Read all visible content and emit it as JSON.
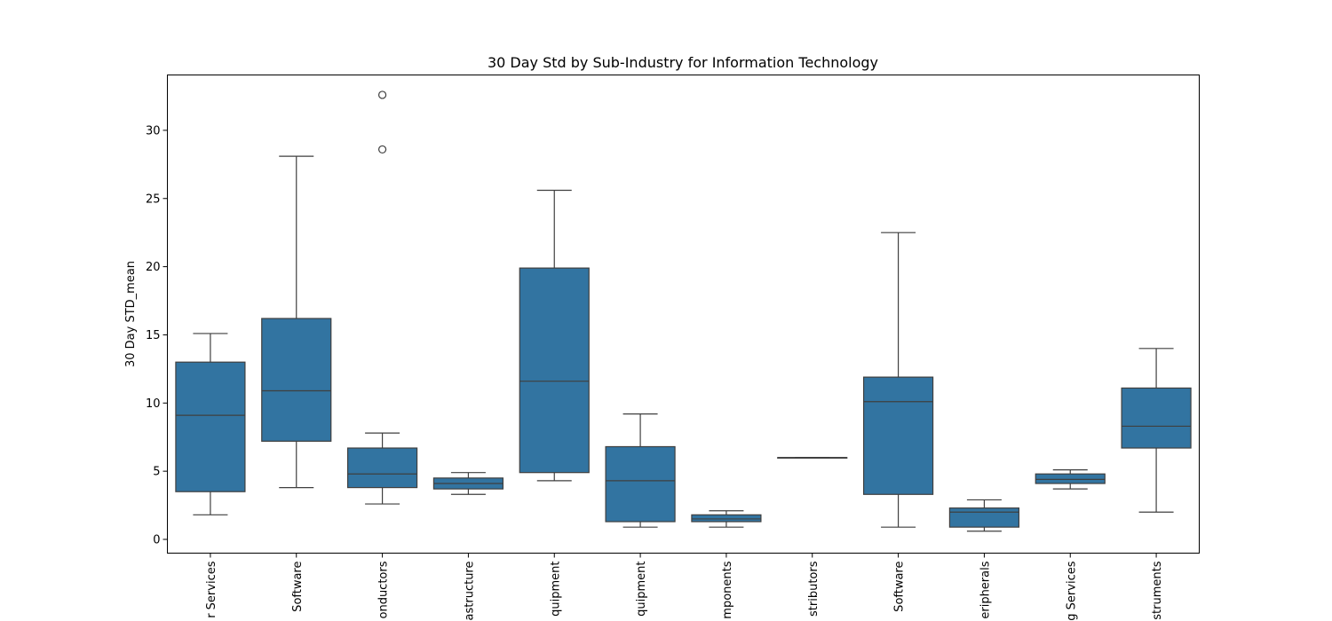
{
  "chart_data": {
    "type": "box",
    "title": "30 Day Std by Sub-Industry for Information Technology",
    "xlabel": "",
    "ylabel": "30 Day STD_mean",
    "ylim": [
      -1,
      34
    ],
    "yticks": [
      0,
      5,
      10,
      15,
      20,
      25,
      30
    ],
    "grid": false,
    "legend": "none",
    "box_color": "#3274a1",
    "line_color": "#3f3f3f",
    "categories": [
      "r Services",
      "Software",
      "onductors",
      "astructure",
      "quipment",
      "quipment",
      "mponents",
      "stributors",
      "Software",
      "eripherals",
      "g Services",
      "struments"
    ],
    "boxes": [
      {
        "whislo": 1.8,
        "q1": 3.5,
        "med": 9.1,
        "q3": 13.0,
        "whishi": 15.1,
        "fliers": []
      },
      {
        "whislo": 3.8,
        "q1": 7.2,
        "med": 10.9,
        "q3": 16.2,
        "whishi": 28.1,
        "fliers": []
      },
      {
        "whislo": 2.6,
        "q1": 3.8,
        "med": 4.8,
        "q3": 6.7,
        "whishi": 7.8,
        "fliers": [
          28.6,
          32.6
        ]
      },
      {
        "whislo": 3.3,
        "q1": 3.7,
        "med": 4.1,
        "q3": 4.5,
        "whishi": 4.9,
        "fliers": []
      },
      {
        "whislo": 4.3,
        "q1": 4.9,
        "med": 11.6,
        "q3": 19.9,
        "whishi": 25.6,
        "fliers": []
      },
      {
        "whislo": 0.9,
        "q1": 1.3,
        "med": 4.3,
        "q3": 6.8,
        "whishi": 9.2,
        "fliers": []
      },
      {
        "whislo": 0.9,
        "q1": 1.3,
        "med": 1.5,
        "q3": 1.8,
        "whishi": 2.1,
        "fliers": []
      },
      {
        "whislo": 6.0,
        "q1": 6.0,
        "med": 6.0,
        "q3": 6.0,
        "whishi": 6.0,
        "fliers": []
      },
      {
        "whislo": 0.9,
        "q1": 3.3,
        "med": 10.1,
        "q3": 11.9,
        "whishi": 22.5,
        "fliers": []
      },
      {
        "whislo": 0.6,
        "q1": 0.9,
        "med": 2.0,
        "q3": 2.3,
        "whishi": 2.9,
        "fliers": []
      },
      {
        "whislo": 3.7,
        "q1": 4.1,
        "med": 4.4,
        "q3": 4.8,
        "whishi": 5.1,
        "fliers": []
      },
      {
        "whislo": 2.0,
        "q1": 6.7,
        "med": 8.3,
        "q3": 11.1,
        "whishi": 14.0,
        "fliers": []
      }
    ]
  }
}
